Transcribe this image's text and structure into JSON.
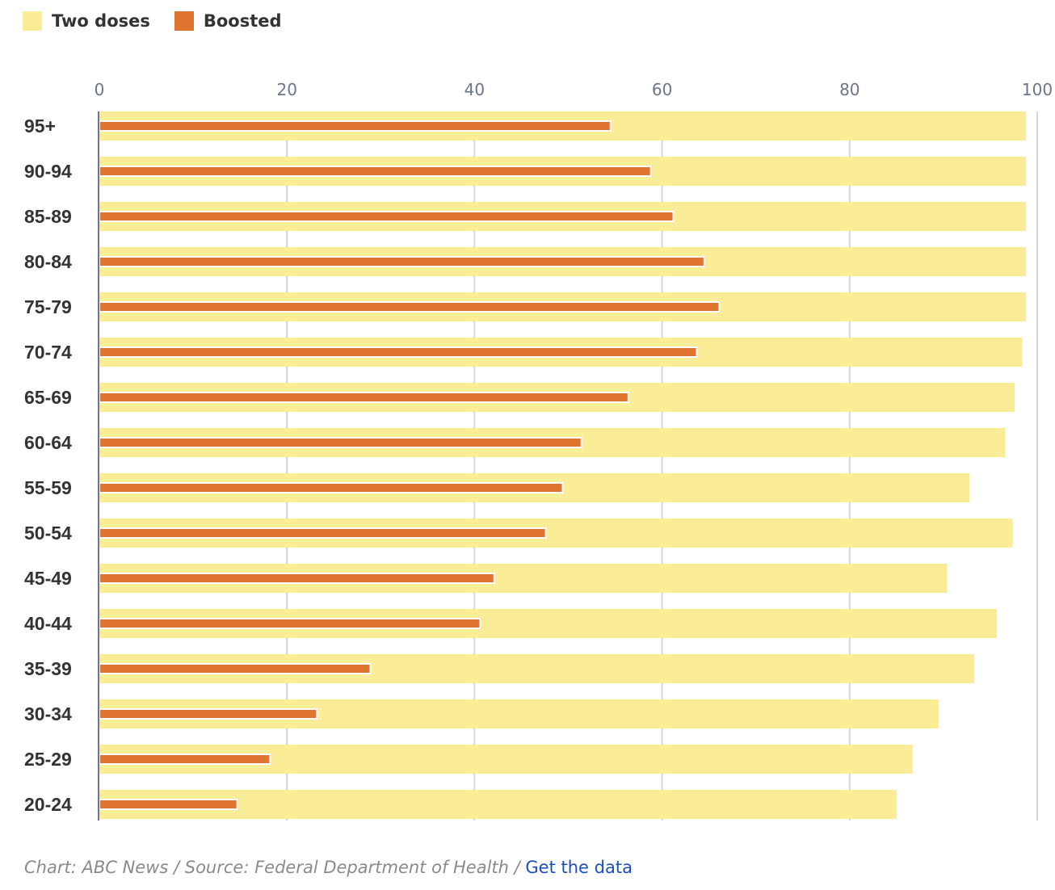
{
  "chart_data": {
    "type": "bar",
    "orientation": "horizontal",
    "title": "",
    "xlabel": "",
    "ylabel": "",
    "xlim": [
      0,
      100
    ],
    "xticks": [
      0,
      20,
      40,
      60,
      80,
      100
    ],
    "grid": true,
    "legend_position": "top-left",
    "categories": [
      "95+",
      "90-94",
      "85-89",
      "80-84",
      "75-79",
      "70-74",
      "65-69",
      "60-64",
      "55-59",
      "50-54",
      "45-49",
      "40-44",
      "35-39",
      "30-34",
      "25-29",
      "20-24"
    ],
    "series": [
      {
        "name": "Two doses",
        "color": "#fbed98",
        "values": [
          98.8,
          98.8,
          98.8,
          98.8,
          98.8,
          98.4,
          97.6,
          96.6,
          92.8,
          97.4,
          90.4,
          95.7,
          93.3,
          89.5,
          86.7,
          85.0
        ]
      },
      {
        "name": "Boosted",
        "color": "#e0752f",
        "values": [
          54.5,
          58.8,
          61.2,
          64.5,
          66.1,
          63.7,
          56.4,
          51.4,
          49.4,
          47.6,
          42.1,
          40.6,
          28.9,
          23.2,
          18.2,
          14.7
        ]
      }
    ]
  },
  "legend": {
    "items": [
      {
        "label": "Two doses",
        "color": "#fbed98"
      },
      {
        "label": "Boosted",
        "color": "#e0752f"
      }
    ]
  },
  "footer": {
    "credit": "Chart: ABC News / Source: Federal Department of Health / ",
    "link_label": "Get the data"
  }
}
